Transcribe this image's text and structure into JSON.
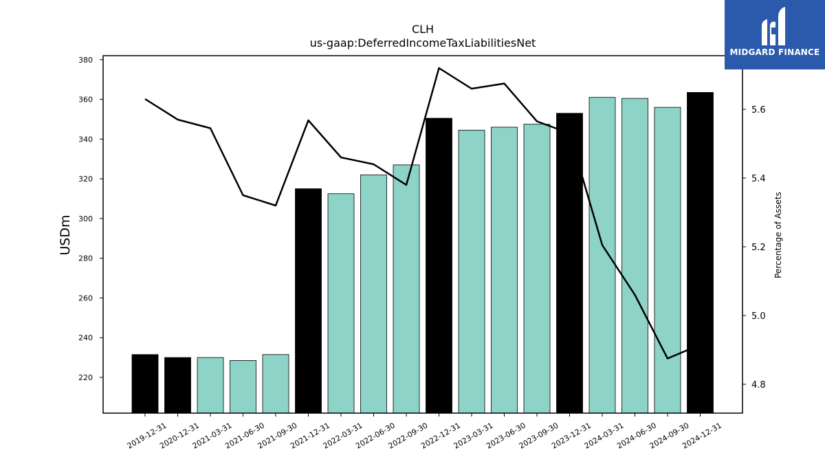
{
  "chart_data": {
    "type": "bar",
    "title": "CLH",
    "subtitle": "us-gaap:DeferredIncomeTaxLiabilitiesNet",
    "ylabel": "USDm",
    "y2label": "Percentage of Assets",
    "ylim": [
      202,
      382
    ],
    "y2lim": [
      4.716,
      5.756
    ],
    "yticks": [
      220,
      240,
      260,
      280,
      300,
      320,
      340,
      360,
      380
    ],
    "y2ticks": [
      4.8,
      5.0,
      5.2,
      5.4,
      5.6
    ],
    "categories": [
      "2019-12-31",
      "2020-12-31",
      "2021-03-31",
      "2021-06-30",
      "2021-09-30",
      "2021-12-31",
      "2022-03-31",
      "2022-06-30",
      "2022-09-30",
      "2022-12-31",
      "2023-03-31",
      "2023-06-30",
      "2023-09-30",
      "2023-12-31",
      "2024-03-31",
      "2024-06-30",
      "2024-09-30",
      "2024-12-31"
    ],
    "series": [
      {
        "kind": "bar",
        "values": [
          231.5,
          230,
          230,
          228.5,
          231.5,
          315,
          312.5,
          322,
          327,
          350.5,
          344.5,
          346,
          347.5,
          353,
          361,
          360.5,
          356,
          363.5
        ],
        "annual": [
          true,
          true,
          false,
          false,
          false,
          true,
          false,
          false,
          false,
          true,
          false,
          false,
          false,
          true,
          false,
          false,
          false,
          true
        ]
      },
      {
        "kind": "line",
        "values": [
          5.63,
          5.57,
          5.545,
          5.35,
          5.32,
          5.568,
          5.46,
          5.44,
          5.38,
          5.72,
          5.66,
          5.675,
          5.565,
          5.53,
          5.205,
          5.06,
          4.875,
          4.915
        ]
      }
    ],
    "colors": {
      "annual_bar": "#000000",
      "quarter_bar": "#8dd3c7",
      "line": "#000000"
    },
    "grid": false,
    "legend": "none"
  },
  "logo": {
    "text": "MIDGARD FINANCE",
    "background": "#2b5aad"
  }
}
